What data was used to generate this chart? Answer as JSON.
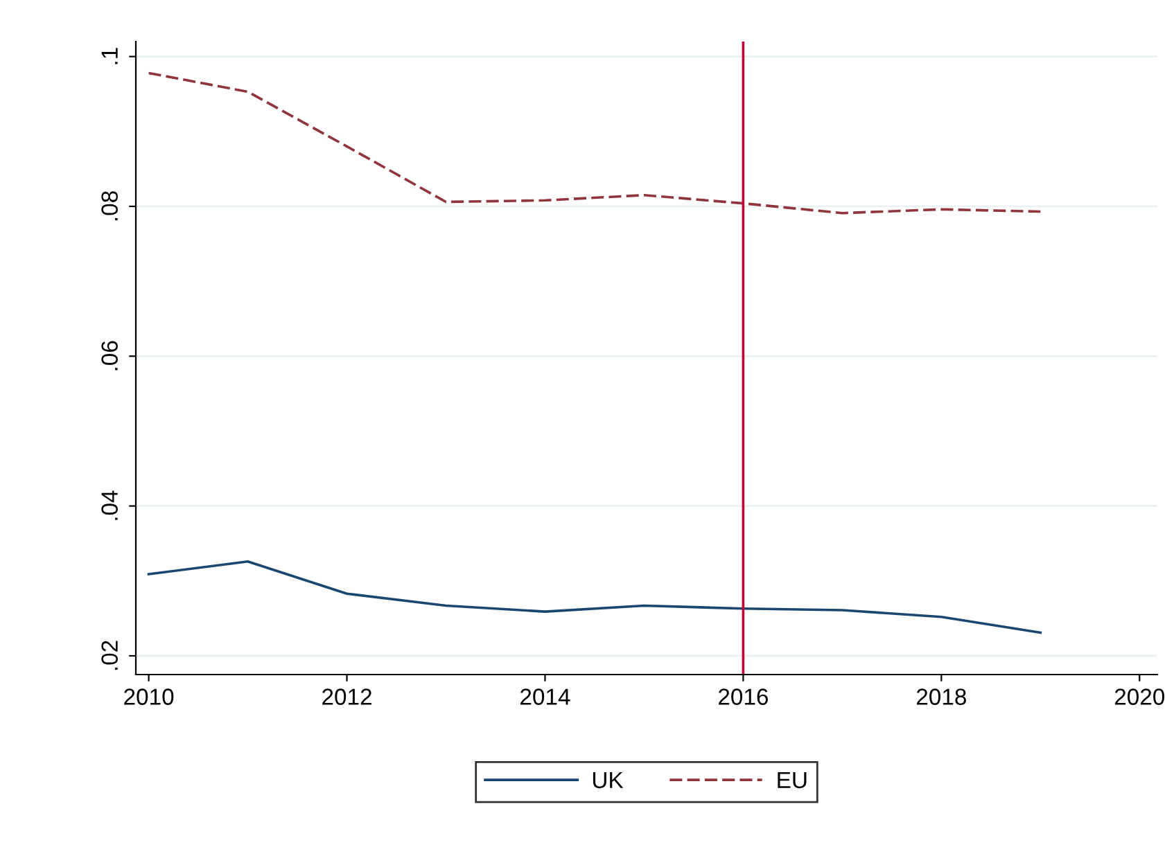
{
  "chart_data": {
    "type": "line",
    "x": [
      2010,
      2011,
      2012,
      2013,
      2014,
      2015,
      2016,
      2017,
      2018,
      2019
    ],
    "series": [
      {
        "name": "UK",
        "color": "#1a476f",
        "line_style": "solid",
        "values": [
          0.0309,
          0.0326,
          0.0283,
          0.0267,
          0.0259,
          0.0267,
          0.0263,
          0.0261,
          0.0252,
          0.0231
        ]
      },
      {
        "name": "EU",
        "color": "#90353b",
        "line_style": "dashed",
        "values": [
          0.0978,
          0.0953,
          0.088,
          0.0806,
          0.0808,
          0.0815,
          0.0804,
          0.0791,
          0.0796,
          0.0793
        ]
      }
    ],
    "xlim": [
      2009.87,
      2020.18
    ],
    "xticks": [
      2010,
      2012,
      2014,
      2016,
      2018,
      2020
    ],
    "ylim": [
      0.0175,
      0.102
    ],
    "yticks": [
      {
        "value": 0.02,
        "label": ".02"
      },
      {
        "value": 0.04,
        "label": ".04"
      },
      {
        "value": 0.06,
        "label": ".06"
      },
      {
        "value": 0.08,
        "label": ".08"
      },
      {
        "value": 0.1,
        "label": ".1"
      }
    ],
    "grid": "y",
    "legend": "bottom",
    "ref_lines": [
      {
        "axis": "x",
        "value": 2016,
        "color": "#c10534",
        "line_style": "solid"
      }
    ]
  }
}
